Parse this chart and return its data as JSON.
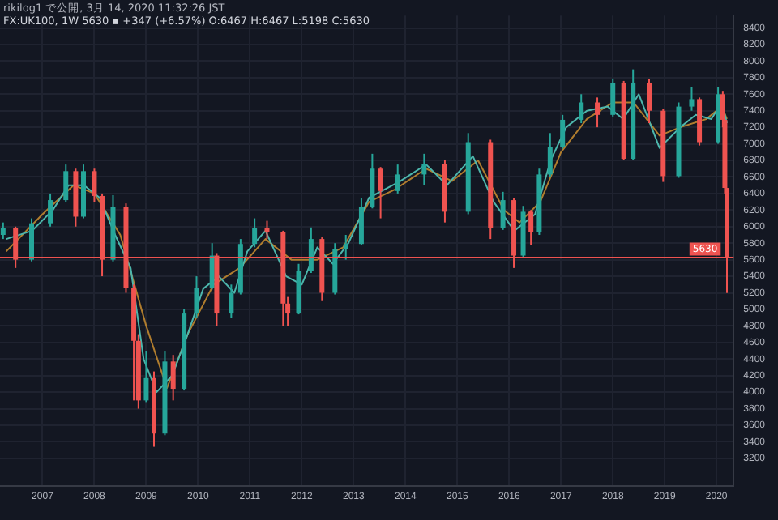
{
  "chart_data": {
    "type": "candlestick",
    "title": "rikilog1 で公開, 3月 14, 2020 11:32:26 JST",
    "subtitle": "FX:UK100, 1W 5630 ▪ +347 (+6.57%) O:6467 H:6467 L:5198 C:5630",
    "x": [
      2006.24,
      2006.48,
      2006.79,
      2007.15,
      2007.45,
      2007.64,
      2007.79,
      2008.0,
      2008.15,
      2008.36,
      2008.61,
      2008.76,
      2008.85,
      2009.0,
      2009.15,
      2009.36,
      2009.52,
      2009.73,
      2009.97,
      2010.27,
      2010.36,
      2010.64,
      2010.82,
      2011.09,
      2011.33,
      2011.64,
      2011.73,
      2011.94,
      2012.18,
      2012.39,
      2012.64,
      2012.85,
      2013.15,
      2013.36,
      2013.52,
      2013.85,
      2014.36,
      2014.76,
      2015.21,
      2015.64,
      2015.88,
      2016.09,
      2016.27,
      2016.42,
      2016.58,
      2016.79,
      2017.03,
      2017.39,
      2017.7,
      2018.0,
      2018.21,
      2018.39,
      2018.7,
      2018.97,
      2019.27,
      2019.52,
      2019.67,
      2020.03,
      2020.12,
      2020.16,
      2020.2
    ],
    "ohlc": [
      [
        5900,
        6050,
        5850,
        5980
      ],
      [
        5980,
        6000,
        5500,
        5600
      ],
      [
        5600,
        6100,
        5580,
        6040
      ],
      [
        6040,
        6400,
        6000,
        6320
      ],
      [
        6320,
        6750,
        6300,
        6670
      ],
      [
        6670,
        6700,
        6000,
        6120
      ],
      [
        6120,
        6750,
        6100,
        6670
      ],
      [
        6670,
        6700,
        6300,
        6370
      ],
      [
        6370,
        6400,
        5400,
        5600
      ],
      [
        5600,
        6380,
        5580,
        6240
      ],
      [
        6240,
        6280,
        5200,
        5260
      ],
      [
        5260,
        5300,
        3900,
        4620
      ],
      [
        4620,
        4700,
        3800,
        3900
      ],
      [
        3900,
        4500,
        3880,
        4170
      ],
      [
        4170,
        4250,
        3340,
        3500
      ],
      [
        3500,
        4500,
        3480,
        4370
      ],
      [
        4370,
        4450,
        3900,
        4040
      ],
      [
        4040,
        5000,
        4020,
        4950
      ],
      [
        4950,
        5400,
        4900,
        5260
      ],
      [
        5260,
        5800,
        5240,
        5650
      ],
      [
        5650,
        5680,
        4800,
        4950
      ],
      [
        4950,
        5300,
        4900,
        5200
      ],
      [
        5200,
        5850,
        5180,
        5790
      ],
      [
        5790,
        6100,
        5750,
        5980
      ],
      [
        5980,
        6070,
        5850,
        5930
      ],
      [
        5930,
        5950,
        4800,
        5070
      ],
      [
        5070,
        5150,
        4800,
        4950
      ],
      [
        4950,
        5550,
        4940,
        5460
      ],
      [
        5460,
        5990,
        5440,
        5850
      ],
      [
        5850,
        5870,
        5100,
        5200
      ],
      [
        5200,
        5800,
        5180,
        5730
      ],
      [
        5730,
        5900,
        5600,
        5790
      ],
      [
        5790,
        6350,
        5780,
        6240
      ],
      [
        6240,
        6880,
        6220,
        6700
      ],
      [
        6700,
        6720,
        6100,
        6430
      ],
      [
        6430,
        6750,
        6400,
        6630
      ],
      [
        6630,
        6880,
        6500,
        6760
      ],
      [
        6760,
        6800,
        6050,
        6180
      ],
      [
        6180,
        7130,
        6150,
        7020
      ],
      [
        7020,
        7050,
        5850,
        5980
      ],
      [
        5980,
        6420,
        5960,
        6320
      ],
      [
        6320,
        6340,
        5500,
        5650
      ],
      [
        5650,
        6250,
        5630,
        6180
      ],
      [
        6180,
        6200,
        5780,
        5930
      ],
      [
        5930,
        6700,
        5900,
        6630
      ],
      [
        6630,
        7130,
        6600,
        6960
      ],
      [
        6960,
        7350,
        6940,
        7290
      ],
      [
        7290,
        7600,
        7250,
        7500
      ],
      [
        7500,
        7560,
        7200,
        7350
      ],
      [
        7350,
        7790,
        7330,
        7740
      ],
      [
        7740,
        7760,
        6800,
        6820
      ],
      [
        6820,
        7900,
        6800,
        7740
      ],
      [
        7740,
        7780,
        7250,
        7400
      ],
      [
        7400,
        7420,
        6540,
        6610
      ],
      [
        6610,
        7500,
        6590,
        7450
      ],
      [
        7450,
        7690,
        7400,
        7540
      ],
      [
        7540,
        7560,
        6980,
        7020
      ],
      [
        7020,
        7690,
        7000,
        7600
      ],
      [
        7600,
        7640,
        7200,
        7290
      ],
      [
        7290,
        7300,
        6400,
        6467
      ],
      [
        6467,
        6467,
        5198,
        5630
      ]
    ],
    "colors": [
      "#26a69a",
      "#ef5350",
      "#26a69a",
      "#26a69a",
      "#26a69a",
      "#ef5350",
      "#26a69a",
      "#ef5350",
      "#ef5350",
      "#26a69a",
      "#ef5350",
      "#ef5350",
      "#ef5350",
      "#26a69a",
      "#ef5350",
      "#26a69a",
      "#ef5350",
      "#26a69a",
      "#26a69a",
      "#26a69a",
      "#ef5350",
      "#26a69a",
      "#26a69a",
      "#26a69a",
      "#ef5350",
      "#ef5350",
      "#ef5350",
      "#26a69a",
      "#26a69a",
      "#ef5350",
      "#26a69a",
      "#26a69a",
      "#26a69a",
      "#26a69a",
      "#ef5350",
      "#26a69a",
      "#26a69a",
      "#ef5350",
      "#26a69a",
      "#ef5350",
      "#26a69a",
      "#ef5350",
      "#26a69a",
      "#ef5350",
      "#26a69a",
      "#26a69a",
      "#26a69a",
      "#26a69a",
      "#ef5350",
      "#26a69a",
      "#ef5350",
      "#26a69a",
      "#ef5350",
      "#ef5350",
      "#26a69a",
      "#26a69a",
      "#ef5350",
      "#26a69a",
      "#ef5350",
      "#ef5350",
      "#ef5350"
    ],
    "series": [
      {
        "type": "line",
        "color": "#4db6ac",
        "x": [
          2006.3,
          2006.8,
          2007.2,
          2007.5,
          2007.8,
          2008.1,
          2008.4,
          2008.7,
          2008.95,
          2009.2,
          2009.5,
          2009.8,
          2010.1,
          2010.4,
          2010.7,
          2010.95,
          2011.3,
          2011.7,
          2012.0,
          2012.3,
          2012.6,
          2012.9,
          2013.3,
          2013.6,
          2013.9,
          2014.4,
          2014.8,
          2015.3,
          2015.7,
          2016.1,
          2016.5,
          2016.8,
          2017.1,
          2017.5,
          2017.9,
          2018.2,
          2018.5,
          2018.9,
          2019.3,
          2019.6,
          2019.9,
          2020.1,
          2020.2
        ],
        "values": [
          5850,
          5950,
          6200,
          6500,
          6500,
          6350,
          5900,
          5500,
          4400,
          4000,
          4200,
          4700,
          5250,
          5400,
          5200,
          5700,
          5950,
          5400,
          5300,
          5750,
          5550,
          5800,
          6350,
          6450,
          6550,
          6750,
          6500,
          6850,
          6300,
          5950,
          6150,
          6800,
          7200,
          7400,
          7450,
          7300,
          7600,
          6950,
          7200,
          7350,
          7300,
          7500,
          7250
        ]
      },
      {
        "type": "line",
        "color": "#b07d2e",
        "x": [
          2006.3,
          2007.0,
          2007.6,
          2008.0,
          2008.5,
          2009.0,
          2009.4,
          2009.8,
          2010.3,
          2010.8,
          2011.3,
          2011.8,
          2012.3,
          2012.8,
          2013.3,
          2013.8,
          2014.4,
          2014.9,
          2015.4,
          2015.9,
          2016.2,
          2016.6,
          2017.0,
          2017.5,
          2018.0,
          2018.4,
          2018.9,
          2019.3,
          2019.8,
          2020.1,
          2020.2
        ],
        "values": [
          5700,
          6150,
          6500,
          6400,
          5900,
          4800,
          4050,
          4700,
          5300,
          5500,
          5850,
          5600,
          5600,
          5750,
          6300,
          6450,
          6700,
          6550,
          6800,
          6200,
          6050,
          6300,
          6900,
          7300,
          7500,
          7500,
          7100,
          7200,
          7300,
          7450,
          7300
        ]
      }
    ],
    "marker": "none",
    "xlim": [
      2006.18,
      2020.33
    ],
    "xticks": [
      2007,
      2008,
      2009,
      2010,
      2011,
      2012,
      2013,
      2014,
      2015,
      2016,
      2017,
      2018,
      2019,
      2020
    ],
    "ylim": [
      2870,
      8550
    ],
    "yticks": [
      3200,
      3400,
      3600,
      3800,
      4000,
      4200,
      4400,
      4600,
      4800,
      5000,
      5200,
      5400,
      5600,
      5800,
      6000,
      6200,
      6400,
      6600,
      6800,
      7000,
      7200,
      7400,
      7600,
      7800,
      8000,
      8200,
      8400
    ],
    "ref_lines": [
      {
        "axis": "y",
        "value": 5630,
        "label": "5630",
        "color": "#ef5350"
      }
    ],
    "grid": true
  }
}
